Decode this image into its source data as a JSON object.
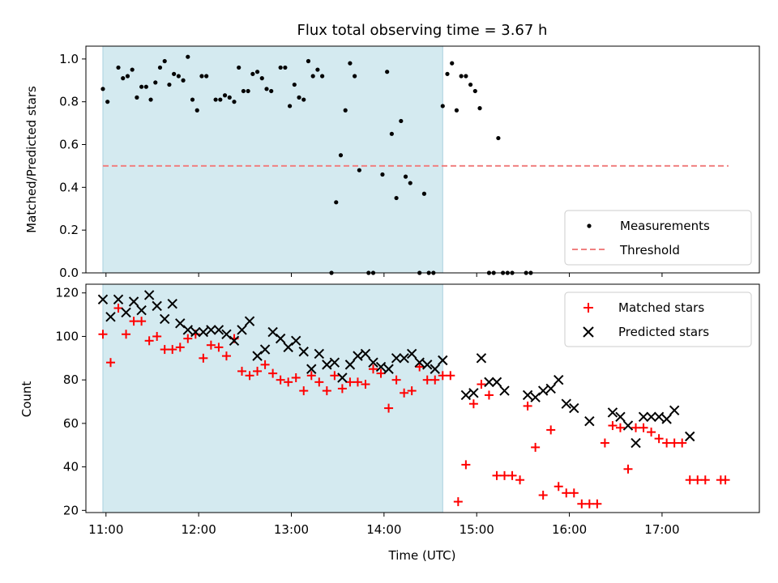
{
  "chart_data": [
    {
      "type": "scatter",
      "title": "Flux total observing time = 3.67 h",
      "xlabel": "",
      "ylabel": "Matched/Predicted stars",
      "xlim": [
        "10:47",
        "18:03"
      ],
      "ylim": [
        0.0,
        1.06
      ],
      "y_ticks": [
        "0.0",
        "0.2",
        "0.4",
        "0.6",
        "0.8",
        "1.0"
      ],
      "shaded_region": {
        "x_start": "10:58",
        "x_end": "14:38",
        "color": "#d4eaf0"
      },
      "legend": {
        "position": "lower-right",
        "entries": [
          "Measurements",
          "Threshold"
        ]
      },
      "threshold": {
        "name": "Threshold",
        "value": 0.5,
        "x_start": "10:58",
        "x_end": "17:43",
        "color": "#f08080"
      },
      "series": [
        {
          "name": "Measurements",
          "color": "#000000",
          "x": [
            "10:58",
            "11:01",
            "11:05",
            "11:08",
            "11:11",
            "11:14",
            "11:17",
            "11:20",
            "11:23",
            "11:26",
            "11:29",
            "11:32",
            "11:35",
            "11:38",
            "11:41",
            "11:44",
            "11:47",
            "11:50",
            "11:53",
            "11:56",
            "11:59",
            "12:02",
            "12:05",
            "12:08",
            "12:11",
            "12:14",
            "12:17",
            "12:20",
            "12:23",
            "12:26",
            "12:29",
            "12:32",
            "12:35",
            "12:38",
            "12:41",
            "12:44",
            "12:47",
            "12:50",
            "12:53",
            "12:56",
            "12:59",
            "13:02",
            "13:05",
            "13:08",
            "13:11",
            "13:14",
            "13:17",
            "13:20",
            "13:23",
            "13:26",
            "13:29",
            "13:32",
            "13:35",
            "13:38",
            "13:41",
            "13:44",
            "13:47",
            "13:50",
            "13:53",
            "13:56",
            "13:59",
            "14:02",
            "14:05",
            "14:08",
            "14:11",
            "14:14",
            "14:17",
            "14:20",
            "14:23",
            "14:26",
            "14:29",
            "14:32",
            "14:35",
            "14:38",
            "14:41",
            "14:44",
            "14:47",
            "14:50",
            "14:53",
            "14:56",
            "14:59",
            "15:02",
            "15:05",
            "15:08",
            "15:11",
            "15:14",
            "15:17",
            "15:20",
            "15:23",
            "15:26",
            "15:29",
            "15:32",
            "15:35",
            "15:38",
            "15:41",
            "15:44",
            "15:47",
            "15:50",
            "15:53",
            "15:56",
            "15:59",
            "16:02",
            "16:05",
            "16:08",
            "16:11",
            "16:14",
            "16:17",
            "16:20",
            "16:23",
            "16:26",
            "16:29",
            "16:32",
            "16:35",
            "16:38",
            "16:41",
            "16:44",
            "16:47",
            "16:50",
            "16:53",
            "16:56",
            "16:59",
            "17:02",
            "17:05",
            "17:08",
            "17:11",
            "17:14",
            "17:17",
            "17:20",
            "17:23",
            "17:26",
            "17:29",
            "17:32",
            "17:35",
            "17:38",
            "17:41"
          ],
          "y": [
            0.86,
            0.8,
            null,
            0.96,
            0.91,
            0.92,
            0.95,
            0.82,
            0.87,
            0.87,
            0.81,
            0.89,
            0.96,
            0.99,
            0.88,
            0.93,
            0.92,
            0.9,
            1.01,
            0.81,
            0.76,
            0.92,
            0.92,
            null,
            0.81,
            0.81,
            0.83,
            0.82,
            0.8,
            0.96,
            0.85,
            0.85,
            0.93,
            0.94,
            0.91,
            0.86,
            0.85,
            null,
            0.96,
            0.96,
            0.78,
            0.88,
            0.82,
            0.81,
            0.99,
            0.92,
            0.95,
            0.92,
            null,
            0.0,
            0.33,
            0.55,
            0.76,
            0.98,
            0.92,
            0.48,
            null,
            0.0,
            0.0,
            null,
            0.46,
            0.94,
            0.65,
            0.35,
            0.71,
            0.45,
            0.42,
            null,
            0.0,
            0.37,
            0.0,
            0.0,
            null,
            0.78,
            0.93,
            0.98,
            0.76,
            0.92,
            0.92,
            0.88,
            0.85,
            0.77,
            null,
            0.0,
            0.0,
            0.63,
            0.0,
            0.0,
            0.0,
            null,
            null,
            0.0,
            0.0,
            null,
            null,
            null,
            null,
            null,
            null,
            null,
            null,
            null,
            null,
            null,
            null,
            null,
            null,
            null,
            null,
            null,
            null,
            null,
            null,
            null,
            null,
            null,
            null,
            null,
            null,
            null,
            null,
            null,
            null,
            null,
            null,
            null,
            null,
            null,
            null,
            null,
            null,
            null,
            null,
            null,
            null
          ]
        }
      ]
    },
    {
      "type": "scatter",
      "title": "",
      "xlabel": "Time (UTC)",
      "ylabel": "Count",
      "xlim": [
        "10:47",
        "18:03"
      ],
      "ylim": [
        19,
        124
      ],
      "x_ticks": [
        "11:00",
        "12:00",
        "13:00",
        "14:00",
        "15:00",
        "16:00",
        "17:00"
      ],
      "y_ticks": [
        "20",
        "40",
        "60",
        "80",
        "100",
        "120"
      ],
      "shaded_region": {
        "x_start": "10:58",
        "x_end": "14:38",
        "color": "#d4eaf0"
      },
      "legend": {
        "position": "upper-right",
        "entries": [
          "Matched stars",
          "Predicted stars"
        ]
      },
      "series": [
        {
          "name": "Matched stars",
          "marker": "+",
          "color": "#ff0000",
          "points": [
            [
              "10:58",
              101
            ],
            [
              "11:03",
              88
            ],
            [
              "11:08",
              113
            ],
            [
              "11:13",
              101
            ],
            [
              "11:18",
              107
            ],
            [
              "11:23",
              107
            ],
            [
              "11:28",
              98
            ],
            [
              "11:33",
              100
            ],
            [
              "11:38",
              94
            ],
            [
              "11:43",
              94
            ],
            [
              "11:48",
              95
            ],
            [
              "11:53",
              99
            ],
            [
              "11:58",
              101
            ],
            [
              "12:03",
              90
            ],
            [
              "12:08",
              96
            ],
            [
              "12:13",
              95
            ],
            [
              "12:18",
              91
            ],
            [
              "12:23",
              99
            ],
            [
              "12:28",
              84
            ],
            [
              "12:33",
              82
            ],
            [
              "12:38",
              84
            ],
            [
              "12:43",
              87
            ],
            [
              "12:48",
              83
            ],
            [
              "12:53",
              80
            ],
            [
              "12:58",
              79
            ],
            [
              "13:03",
              81
            ],
            [
              "13:08",
              75
            ],
            [
              "13:13",
              82
            ],
            [
              "13:18",
              79
            ],
            [
              "13:23",
              75
            ],
            [
              "13:28",
              82
            ],
            [
              "13:33",
              76
            ],
            [
              "13:38",
              79
            ],
            [
              "13:43",
              79
            ],
            [
              "13:48",
              78
            ],
            [
              "13:53",
              85
            ],
            [
              "13:58",
              83
            ],
            [
              "14:03",
              67
            ],
            [
              "14:08",
              80
            ],
            [
              "14:13",
              74
            ],
            [
              "14:18",
              75
            ],
            [
              "14:23",
              86
            ],
            [
              "14:28",
              80
            ],
            [
              "14:33",
              80
            ],
            [
              "14:38",
              82
            ],
            [
              "14:43",
              82
            ],
            [
              "14:48",
              24
            ],
            [
              "14:53",
              41
            ],
            [
              "14:58",
              69
            ],
            [
              "15:03",
              78
            ],
            [
              "15:08",
              73
            ],
            [
              "15:13",
              36
            ],
            [
              "15:18",
              36
            ],
            [
              "15:23",
              36
            ],
            [
              "15:28",
              34
            ],
            [
              "15:33",
              68
            ],
            [
              "15:38",
              49
            ],
            [
              "15:43",
              27
            ],
            [
              "15:48",
              57
            ],
            [
              "15:53",
              31
            ],
            [
              "15:58",
              28
            ],
            [
              "16:03",
              28
            ],
            [
              "16:08",
              23
            ],
            [
              "16:13",
              23
            ],
            [
              "16:18",
              23
            ],
            [
              "16:23",
              51
            ],
            [
              "16:28",
              59
            ],
            [
              "16:33",
              58
            ],
            [
              "16:38",
              39
            ],
            [
              "16:43",
              58
            ],
            [
              "16:48",
              58
            ],
            [
              "16:53",
              56
            ],
            [
              "16:58",
              53
            ],
            [
              "17:03",
              51
            ],
            [
              "17:08",
              51
            ],
            [
              "17:13",
              51
            ],
            [
              "17:18",
              34
            ],
            [
              "17:23",
              34
            ],
            [
              "17:28",
              34
            ],
            [
              "17:38",
              34
            ],
            [
              "17:41",
              34
            ]
          ]
        },
        {
          "name": "Predicted stars",
          "marker": "x",
          "color": "#000000",
          "points": [
            [
              "10:58",
              117
            ],
            [
              "11:03",
              109
            ],
            [
              "11:08",
              117
            ],
            [
              "11:13",
              111
            ],
            [
              "11:18",
              116
            ],
            [
              "11:23",
              112
            ],
            [
              "11:28",
              119
            ],
            [
              "11:33",
              114
            ],
            [
              "11:38",
              108
            ],
            [
              "11:43",
              115
            ],
            [
              "11:48",
              106
            ],
            [
              "11:53",
              103
            ],
            [
              "11:58",
              102
            ],
            [
              "12:03",
              102
            ],
            [
              "12:08",
              103
            ],
            [
              "12:13",
              103
            ],
            [
              "12:18",
              101
            ],
            [
              "12:23",
              98
            ],
            [
              "12:28",
              103
            ],
            [
              "12:33",
              107
            ],
            [
              "12:38",
              91
            ],
            [
              "12:43",
              94
            ],
            [
              "12:48",
              102
            ],
            [
              "12:53",
              99
            ],
            [
              "12:58",
              95
            ],
            [
              "13:03",
              98
            ],
            [
              "13:08",
              93
            ],
            [
              "13:13",
              85
            ],
            [
              "13:18",
              92
            ],
            [
              "13:23",
              87
            ],
            [
              "13:28",
              88
            ],
            [
              "13:33",
              81
            ],
            [
              "13:38",
              87
            ],
            [
              "13:43",
              91
            ],
            [
              "13:48",
              92
            ],
            [
              "13:53",
              88
            ],
            [
              "13:58",
              86
            ],
            [
              "14:03",
              85
            ],
            [
              "14:08",
              90
            ],
            [
              "14:13",
              90
            ],
            [
              "14:18",
              92
            ],
            [
              "14:23",
              88
            ],
            [
              "14:28",
              87
            ],
            [
              "14:33",
              85
            ],
            [
              "14:38",
              89
            ],
            [
              "14:53",
              73
            ],
            [
              "14:58",
              74
            ],
            [
              "15:03",
              90
            ],
            [
              "15:08",
              79
            ],
            [
              "15:13",
              79
            ],
            [
              "15:18",
              75
            ],
            [
              "15:33",
              73
            ],
            [
              "15:38",
              72
            ],
            [
              "15:43",
              75
            ],
            [
              "15:48",
              76
            ],
            [
              "15:53",
              80
            ],
            [
              "15:58",
              69
            ],
            [
              "16:03",
              67
            ],
            [
              "16:13",
              61
            ],
            [
              "16:28",
              65
            ],
            [
              "16:33",
              63
            ],
            [
              "16:38",
              59
            ],
            [
              "16:43",
              51
            ],
            [
              "16:48",
              63
            ],
            [
              "16:53",
              63
            ],
            [
              "16:58",
              63
            ],
            [
              "17:03",
              62
            ],
            [
              "17:08",
              66
            ],
            [
              "17:18",
              54
            ]
          ]
        }
      ]
    }
  ]
}
